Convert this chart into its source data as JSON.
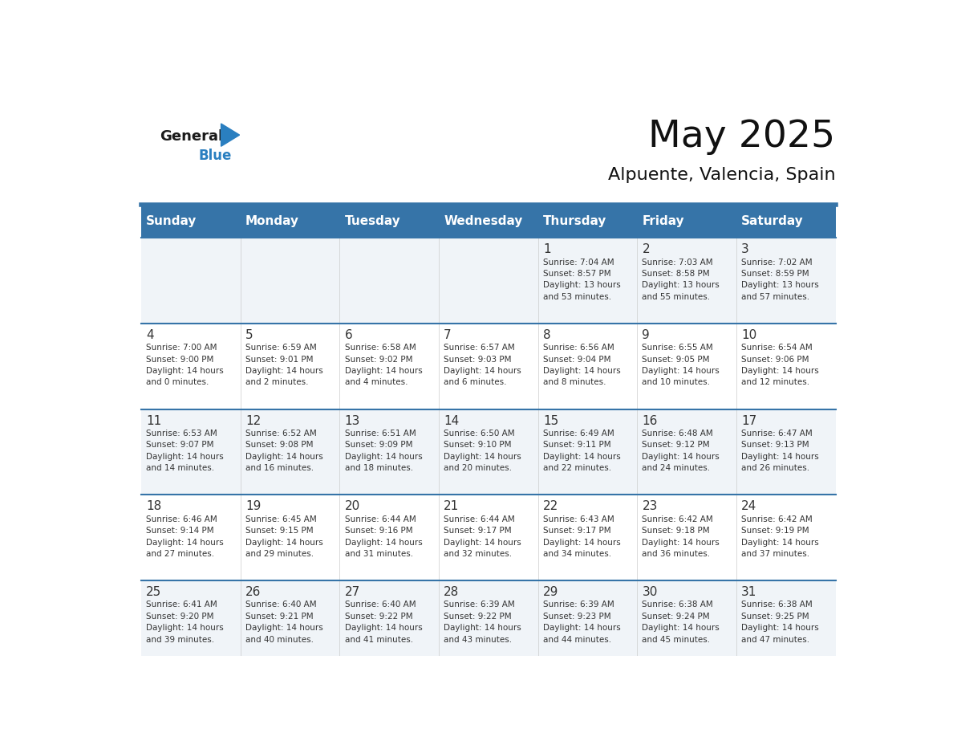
{
  "title": "May 2025",
  "subtitle": "Alpuente, Valencia, Spain",
  "days_of_week": [
    "Sunday",
    "Monday",
    "Tuesday",
    "Wednesday",
    "Thursday",
    "Friday",
    "Saturday"
  ],
  "header_bg": "#3674a8",
  "header_text_color": "#ffffff",
  "row_bg_even": "#f0f4f8",
  "row_bg_odd": "#ffffff",
  "border_color": "#3674a8",
  "text_color": "#333333",
  "day_num_color": "#333333",
  "weeks": [
    {
      "days": [
        {
          "date": "",
          "info": ""
        },
        {
          "date": "",
          "info": ""
        },
        {
          "date": "",
          "info": ""
        },
        {
          "date": "",
          "info": ""
        },
        {
          "date": "1",
          "info": "Sunrise: 7:04 AM\nSunset: 8:57 PM\nDaylight: 13 hours\nand 53 minutes."
        },
        {
          "date": "2",
          "info": "Sunrise: 7:03 AM\nSunset: 8:58 PM\nDaylight: 13 hours\nand 55 minutes."
        },
        {
          "date": "3",
          "info": "Sunrise: 7:02 AM\nSunset: 8:59 PM\nDaylight: 13 hours\nand 57 minutes."
        }
      ]
    },
    {
      "days": [
        {
          "date": "4",
          "info": "Sunrise: 7:00 AM\nSunset: 9:00 PM\nDaylight: 14 hours\nand 0 minutes."
        },
        {
          "date": "5",
          "info": "Sunrise: 6:59 AM\nSunset: 9:01 PM\nDaylight: 14 hours\nand 2 minutes."
        },
        {
          "date": "6",
          "info": "Sunrise: 6:58 AM\nSunset: 9:02 PM\nDaylight: 14 hours\nand 4 minutes."
        },
        {
          "date": "7",
          "info": "Sunrise: 6:57 AM\nSunset: 9:03 PM\nDaylight: 14 hours\nand 6 minutes."
        },
        {
          "date": "8",
          "info": "Sunrise: 6:56 AM\nSunset: 9:04 PM\nDaylight: 14 hours\nand 8 minutes."
        },
        {
          "date": "9",
          "info": "Sunrise: 6:55 AM\nSunset: 9:05 PM\nDaylight: 14 hours\nand 10 minutes."
        },
        {
          "date": "10",
          "info": "Sunrise: 6:54 AM\nSunset: 9:06 PM\nDaylight: 14 hours\nand 12 minutes."
        }
      ]
    },
    {
      "days": [
        {
          "date": "11",
          "info": "Sunrise: 6:53 AM\nSunset: 9:07 PM\nDaylight: 14 hours\nand 14 minutes."
        },
        {
          "date": "12",
          "info": "Sunrise: 6:52 AM\nSunset: 9:08 PM\nDaylight: 14 hours\nand 16 minutes."
        },
        {
          "date": "13",
          "info": "Sunrise: 6:51 AM\nSunset: 9:09 PM\nDaylight: 14 hours\nand 18 minutes."
        },
        {
          "date": "14",
          "info": "Sunrise: 6:50 AM\nSunset: 9:10 PM\nDaylight: 14 hours\nand 20 minutes."
        },
        {
          "date": "15",
          "info": "Sunrise: 6:49 AM\nSunset: 9:11 PM\nDaylight: 14 hours\nand 22 minutes."
        },
        {
          "date": "16",
          "info": "Sunrise: 6:48 AM\nSunset: 9:12 PM\nDaylight: 14 hours\nand 24 minutes."
        },
        {
          "date": "17",
          "info": "Sunrise: 6:47 AM\nSunset: 9:13 PM\nDaylight: 14 hours\nand 26 minutes."
        }
      ]
    },
    {
      "days": [
        {
          "date": "18",
          "info": "Sunrise: 6:46 AM\nSunset: 9:14 PM\nDaylight: 14 hours\nand 27 minutes."
        },
        {
          "date": "19",
          "info": "Sunrise: 6:45 AM\nSunset: 9:15 PM\nDaylight: 14 hours\nand 29 minutes."
        },
        {
          "date": "20",
          "info": "Sunrise: 6:44 AM\nSunset: 9:16 PM\nDaylight: 14 hours\nand 31 minutes."
        },
        {
          "date": "21",
          "info": "Sunrise: 6:44 AM\nSunset: 9:17 PM\nDaylight: 14 hours\nand 32 minutes."
        },
        {
          "date": "22",
          "info": "Sunrise: 6:43 AM\nSunset: 9:17 PM\nDaylight: 14 hours\nand 34 minutes."
        },
        {
          "date": "23",
          "info": "Sunrise: 6:42 AM\nSunset: 9:18 PM\nDaylight: 14 hours\nand 36 minutes."
        },
        {
          "date": "24",
          "info": "Sunrise: 6:42 AM\nSunset: 9:19 PM\nDaylight: 14 hours\nand 37 minutes."
        }
      ]
    },
    {
      "days": [
        {
          "date": "25",
          "info": "Sunrise: 6:41 AM\nSunset: 9:20 PM\nDaylight: 14 hours\nand 39 minutes."
        },
        {
          "date": "26",
          "info": "Sunrise: 6:40 AM\nSunset: 9:21 PM\nDaylight: 14 hours\nand 40 minutes."
        },
        {
          "date": "27",
          "info": "Sunrise: 6:40 AM\nSunset: 9:22 PM\nDaylight: 14 hours\nand 41 minutes."
        },
        {
          "date": "28",
          "info": "Sunrise: 6:39 AM\nSunset: 9:22 PM\nDaylight: 14 hours\nand 43 minutes."
        },
        {
          "date": "29",
          "info": "Sunrise: 6:39 AM\nSunset: 9:23 PM\nDaylight: 14 hours\nand 44 minutes."
        },
        {
          "date": "30",
          "info": "Sunrise: 6:38 AM\nSunset: 9:24 PM\nDaylight: 14 hours\nand 45 minutes."
        },
        {
          "date": "31",
          "info": "Sunrise: 6:38 AM\nSunset: 9:25 PM\nDaylight: 14 hours\nand 47 minutes."
        }
      ]
    }
  ],
  "logo_general_color": "#1a1a1a",
  "logo_blue_color": "#2a7fc0",
  "logo_triangle_color": "#2a7fc0"
}
